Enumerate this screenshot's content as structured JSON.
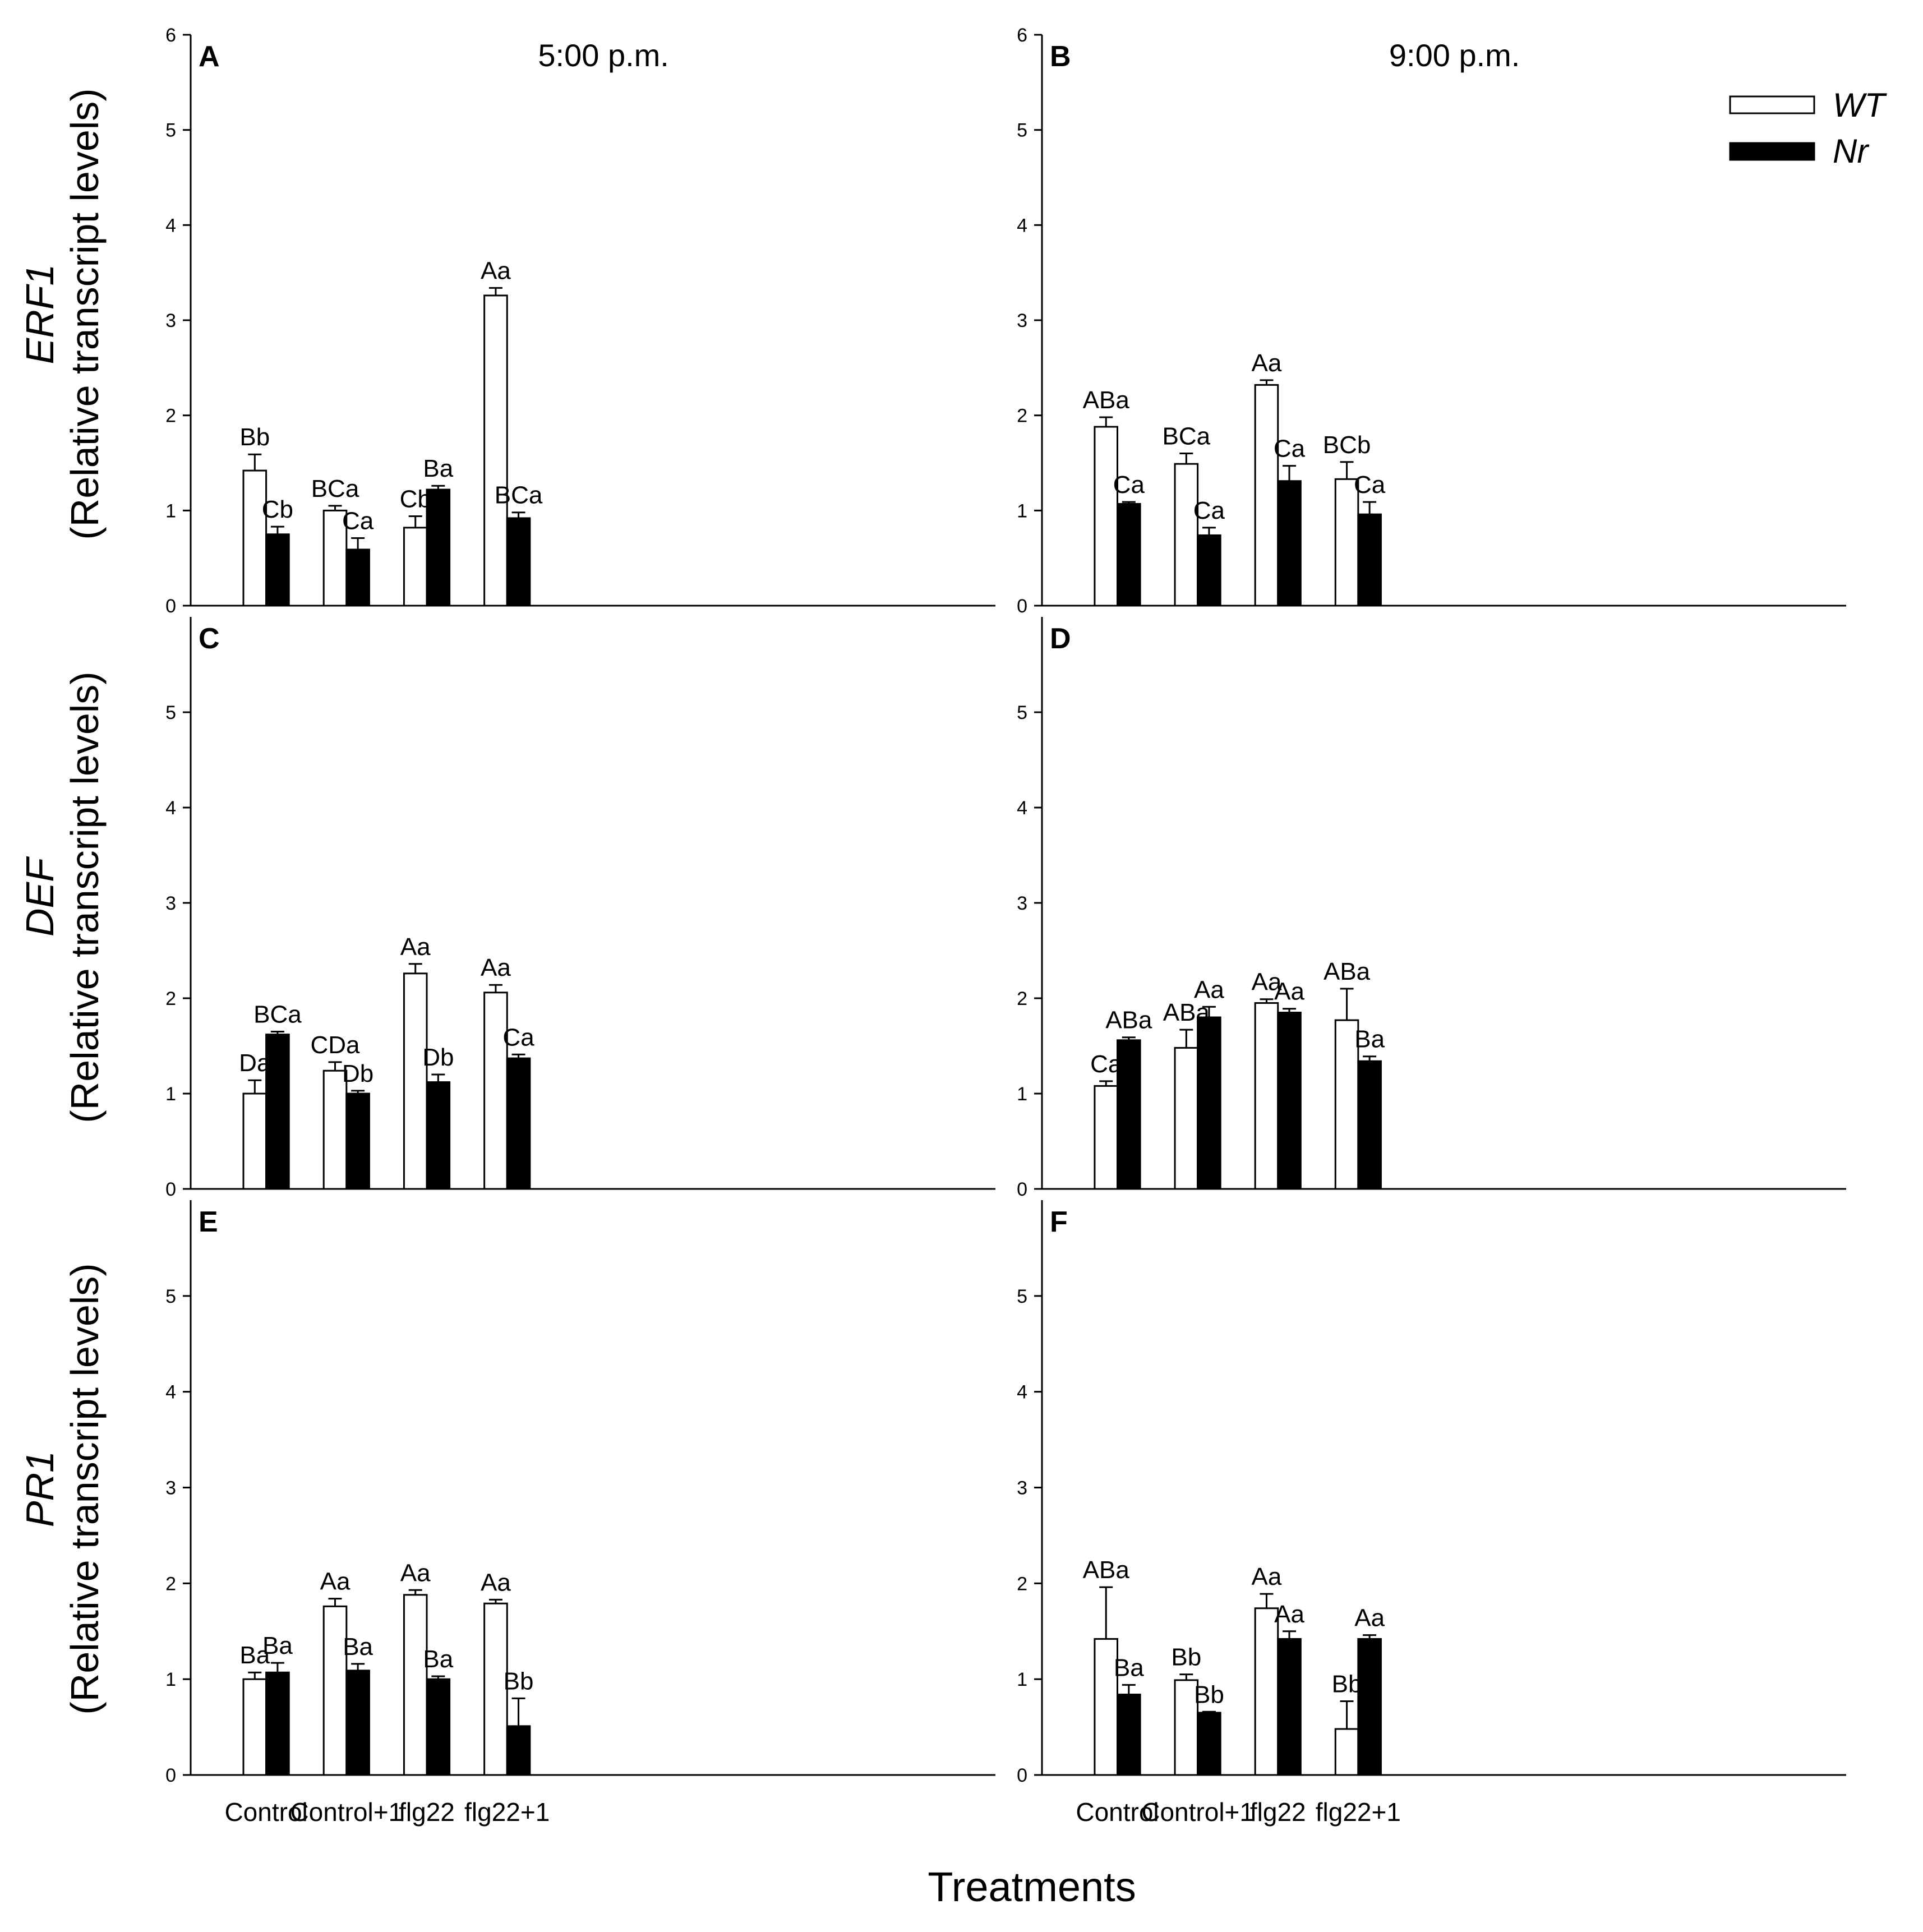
{
  "figure": {
    "x_label": "Treatments",
    "y_label_suffix": "(Relative transcript levels)",
    "series_names": [
      "WT",
      "Nr"
    ],
    "colors": {
      "WT": "#ffffff",
      "Nr": "#000000",
      "axis": "#000000"
    },
    "legend": {
      "placement": "top-right of panel B",
      "entries": [
        "WT",
        "Nr"
      ]
    }
  },
  "chart_data": [
    {
      "panel": "A",
      "type": "bar",
      "gene": "ERF1",
      "time": "5:00 p.m.",
      "categories": [
        "Control",
        "Control+1",
        "flg22",
        "flg22+1"
      ],
      "ylim": [
        0,
        6
      ],
      "yticks": [
        0,
        1,
        2,
        3,
        4,
        5,
        6
      ],
      "series": [
        {
          "name": "WT",
          "values": [
            1.42,
            1.0,
            0.82,
            3.26
          ],
          "errors": [
            0.17,
            0.05,
            0.12,
            0.08
          ],
          "letters": [
            "Bb",
            "BCa",
            "Cb",
            "Aa"
          ]
        },
        {
          "name": "Nr",
          "values": [
            0.75,
            0.59,
            1.22,
            0.92
          ],
          "errors": [
            0.08,
            0.12,
            0.04,
            0.06
          ],
          "letters": [
            "Cb",
            "Ca",
            "Ba",
            "BCa"
          ]
        }
      ]
    },
    {
      "panel": "B",
      "type": "bar",
      "gene": "ERF1",
      "time": "9:00 p.m.",
      "categories": [
        "Control",
        "Control+1",
        "flg22",
        "flg22+1"
      ],
      "ylim": [
        0,
        6
      ],
      "yticks": [
        0,
        1,
        2,
        3,
        4,
        5,
        6
      ],
      "series": [
        {
          "name": "WT",
          "values": [
            1.88,
            1.49,
            2.32,
            1.33
          ],
          "errors": [
            0.1,
            0.11,
            0.05,
            0.18
          ],
          "letters": [
            "ABa",
            "BCa",
            "Aa",
            "BCb"
          ]
        },
        {
          "name": "Nr",
          "values": [
            1.07,
            0.74,
            1.31,
            0.96
          ],
          "errors": [
            0.02,
            0.08,
            0.16,
            0.13
          ],
          "letters": [
            "Ca",
            "Ca",
            "Ca",
            "Ca"
          ]
        }
      ]
    },
    {
      "panel": "C",
      "type": "bar",
      "gene": "DEF",
      "time": "",
      "categories": [
        "Control",
        "Control+1",
        "flg22",
        "flg22+1"
      ],
      "ylim": [
        0,
        6
      ],
      "yticks": [
        0,
        1,
        2,
        3,
        4,
        5
      ],
      "series": [
        {
          "name": "WT",
          "values": [
            1.0,
            1.24,
            2.26,
            2.06
          ],
          "errors": [
            0.14,
            0.09,
            0.1,
            0.08
          ],
          "letters": [
            "Da",
            "CDa",
            "Aa",
            "Aa"
          ]
        },
        {
          "name": "Nr",
          "values": [
            1.62,
            1.0,
            1.12,
            1.37
          ],
          "errors": [
            0.03,
            0.03,
            0.08,
            0.04
          ],
          "letters": [
            "BCa",
            "Db",
            "Db",
            "Ca"
          ]
        }
      ]
    },
    {
      "panel": "D",
      "type": "bar",
      "gene": "DEF",
      "time": "",
      "categories": [
        "Control",
        "Control+1",
        "flg22",
        "flg22+1"
      ],
      "ylim": [
        0,
        6
      ],
      "yticks": [
        0,
        1,
        2,
        3,
        4,
        5
      ],
      "series": [
        {
          "name": "WT",
          "values": [
            1.08,
            1.48,
            1.95,
            1.77
          ],
          "errors": [
            0.05,
            0.19,
            0.04,
            0.33
          ],
          "letters": [
            "Ca",
            "ABa",
            "Aa",
            "ABa"
          ]
        },
        {
          "name": "Nr",
          "values": [
            1.56,
            1.8,
            1.85,
            1.34
          ],
          "errors": [
            0.03,
            0.11,
            0.04,
            0.05
          ],
          "letters": [
            "ABa",
            "Aa",
            "Aa",
            "Ba"
          ]
        }
      ]
    },
    {
      "panel": "E",
      "type": "bar",
      "gene": "PR1",
      "time": "",
      "categories": [
        "Control",
        "Control+1",
        "flg22",
        "flg22+1"
      ],
      "ylim": [
        0,
        6
      ],
      "yticks": [
        0,
        1,
        2,
        3,
        4,
        5
      ],
      "series": [
        {
          "name": "WT",
          "values": [
            1.0,
            1.76,
            1.88,
            1.79
          ],
          "errors": [
            0.07,
            0.08,
            0.05,
            0.04
          ],
          "letters": [
            "Ba",
            "Aa",
            "Aa",
            "Aa"
          ]
        },
        {
          "name": "Nr",
          "values": [
            1.07,
            1.09,
            1.0,
            0.51
          ],
          "errors": [
            0.1,
            0.07,
            0.03,
            0.29
          ],
          "letters": [
            "Ba",
            "Ba",
            "Ba",
            "Bb"
          ]
        }
      ]
    },
    {
      "panel": "F",
      "type": "bar",
      "gene": "PR1",
      "time": "",
      "categories": [
        "Control",
        "Control+1",
        "flg22",
        "flg22+1"
      ],
      "ylim": [
        0,
        6
      ],
      "yticks": [
        0,
        1,
        2,
        3,
        4,
        5
      ],
      "series": [
        {
          "name": "WT",
          "values": [
            1.42,
            0.99,
            1.74,
            0.48
          ],
          "errors": [
            0.54,
            0.06,
            0.15,
            0.29
          ],
          "letters": [
            "ABa",
            "Bb",
            "Aa",
            "Bb"
          ]
        },
        {
          "name": "Nr",
          "values": [
            0.84,
            0.65,
            1.42,
            1.42
          ],
          "errors": [
            0.1,
            0.01,
            0.08,
            0.04
          ],
          "letters": [
            "Ba",
            "Bb",
            "Aa",
            "Aa"
          ]
        }
      ]
    }
  ]
}
